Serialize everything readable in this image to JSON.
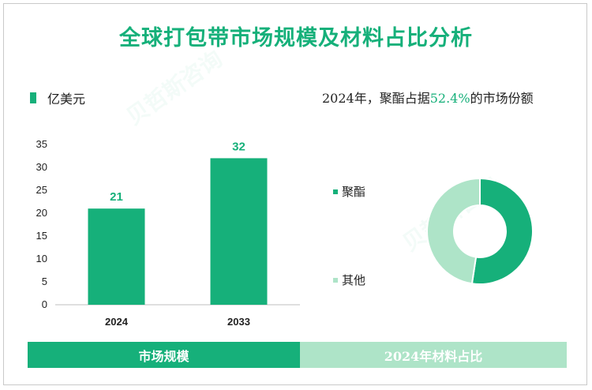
{
  "title": "全球打包带市场规模及材料占比分析",
  "unit_label": "亿美元",
  "right_title": {
    "prefix": "2024年，聚酯占据",
    "pct": "52.4%",
    "suffix": "的市场份额"
  },
  "colors": {
    "accent": "#16b07a",
    "light": "#aee4c8"
  },
  "bottom_tabs": [
    "市场规模",
    "2024年材料占比"
  ],
  "chart_data": [
    {
      "type": "bar",
      "categories": [
        "2024",
        "2033"
      ],
      "values": [
        21,
        32
      ],
      "ylim": [
        0,
        35
      ],
      "yticks": [
        0,
        5,
        10,
        15,
        20,
        25,
        30,
        35
      ],
      "title": "",
      "xlabel": "",
      "ylabel": "亿美元"
    },
    {
      "type": "pie",
      "donut": true,
      "labels": [
        "聚酯",
        "其他"
      ],
      "values": [
        52.4,
        47.6
      ],
      "colors": [
        "#16b07a",
        "#aee4c8"
      ]
    }
  ]
}
